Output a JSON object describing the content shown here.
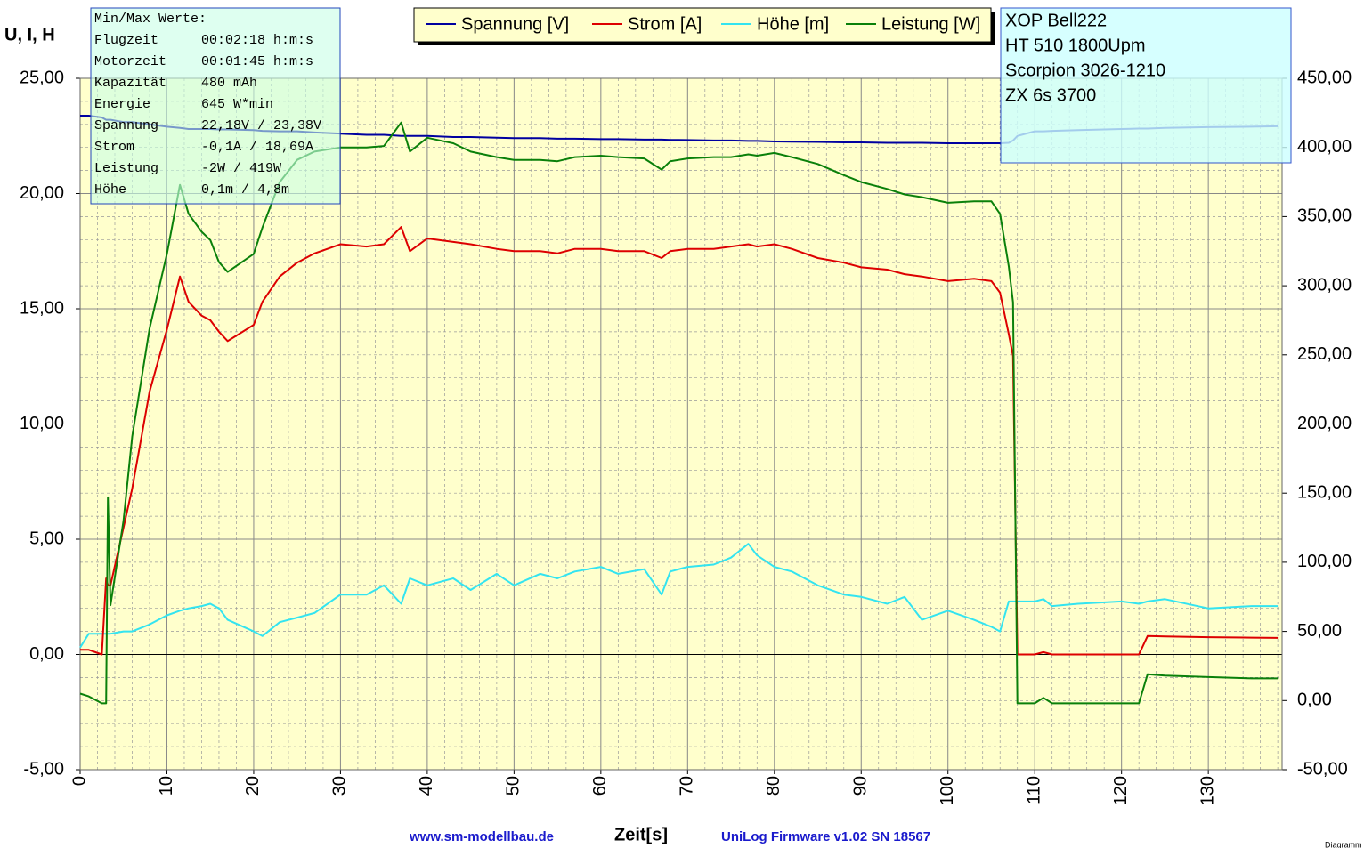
{
  "chart_data": {
    "type": "line",
    "ylabel": "U, I, H",
    "xlabel": "Zeit[s]",
    "footer_left": "www.sm-modellbau.de",
    "footer_right": "UniLog Firmware v1.02 SN 18567",
    "corner_label": "Diagramm",
    "info_box": {
      "title": "Min/Max Werte:",
      "rows": [
        [
          "Flugzeit",
          "00:02:18 h:m:s"
        ],
        [
          "Motorzeit",
          "00:01:45 h:m:s"
        ],
        [
          "Kapazität",
          "480 mAh"
        ],
        [
          "Energie",
          "645 W*min"
        ],
        [
          "Spannung",
          "22,18V / 23,38V"
        ],
        [
          "Strom",
          "-0,1A / 18,69A"
        ],
        [
          "Leistung",
          "-2W / 419W"
        ],
        [
          "Höhe",
          "0,1m / 4,8m"
        ]
      ]
    },
    "notes_box": [
      "XOP Bell222",
      "HT 510 1800Upm",
      "Scorpion 3026-1210",
      "ZX 6s 3700"
    ],
    "grid": true,
    "minor_grid": true,
    "background": "#ffffcc",
    "xlim": [
      0,
      138.5
    ],
    "xticks": [
      0,
      10,
      20,
      30,
      40,
      50,
      60,
      70,
      80,
      90,
      100,
      110,
      120,
      130
    ],
    "ylim": [
      -5,
      25
    ],
    "yticks": [
      {
        "value": -5,
        "label": "-5,00"
      },
      {
        "value": 0,
        "label": "0,00"
      },
      {
        "value": 5,
        "label": "5,00"
      },
      {
        "value": 10,
        "label": "10,00"
      },
      {
        "value": 15,
        "label": "15,00"
      },
      {
        "value": 20,
        "label": "20,00"
      },
      {
        "value": 25,
        "label": "25,00"
      }
    ],
    "y2lim": [
      -50,
      450
    ],
    "y2ticks": [
      {
        "value": -50,
        "label": "-50,00"
      },
      {
        "value": 0,
        "label": "0,00"
      },
      {
        "value": 50,
        "label": "50,00"
      },
      {
        "value": 100,
        "label": "100,00"
      },
      {
        "value": 150,
        "label": "150,00"
      },
      {
        "value": 200,
        "label": "200,00"
      },
      {
        "value": 250,
        "label": "250,00"
      },
      {
        "value": 300,
        "label": "300,00"
      },
      {
        "value": 350,
        "label": "350,00"
      },
      {
        "value": 400,
        "label": "400,00"
      },
      {
        "value": 450,
        "label": "450,00"
      }
    ],
    "x": [
      0,
      1,
      2.5,
      3,
      3.2,
      3.5,
      5,
      6,
      8,
      10,
      11.5,
      12.5,
      14,
      15,
      16,
      17,
      20,
      21,
      23,
      25,
      27,
      30,
      33,
      35,
      37,
      38,
      40,
      43,
      45,
      48,
      50,
      53,
      55,
      57,
      60,
      62,
      65,
      67,
      68,
      70,
      73,
      75,
      77,
      78,
      80,
      82,
      85,
      88,
      90,
      93,
      95,
      97,
      100,
      103,
      105,
      106,
      107,
      107.5,
      108,
      110,
      111,
      112,
      115,
      120,
      122,
      123,
      125,
      130,
      135,
      138
    ],
    "series": [
      {
        "name": "Spannung [V]",
        "color": "#0000a0",
        "values": [
          23.38,
          23.38,
          23.3,
          23.2,
          23.2,
          23.2,
          23.1,
          23.1,
          23.0,
          22.9,
          22.85,
          22.8,
          22.8,
          22.8,
          22.78,
          22.78,
          22.75,
          22.72,
          22.7,
          22.7,
          22.65,
          22.6,
          22.55,
          22.55,
          22.5,
          22.5,
          22.5,
          22.45,
          22.45,
          22.42,
          22.4,
          22.4,
          22.38,
          22.38,
          22.36,
          22.36,
          22.34,
          22.34,
          22.33,
          22.32,
          22.3,
          22.3,
          22.28,
          22.28,
          22.26,
          22.25,
          22.24,
          22.22,
          22.22,
          22.2,
          22.2,
          22.2,
          22.18,
          22.18,
          22.18,
          22.18,
          22.2,
          22.3,
          22.5,
          22.7,
          22.7,
          22.72,
          22.75,
          22.8,
          22.82,
          22.82,
          22.85,
          22.88,
          22.9,
          22.92
        ]
      },
      {
        "name": "Strom [A]",
        "color": "#dd0000",
        "values": [
          0.2,
          0.2,
          0,
          3.3,
          3.0,
          3.0,
          5.5,
          7.2,
          11.4,
          14.1,
          16.4,
          15.3,
          14.7,
          14.5,
          14.0,
          13.6,
          14.3,
          15.3,
          16.4,
          17.0,
          17.4,
          17.8,
          17.7,
          17.8,
          18.55,
          17.5,
          18.05,
          17.9,
          17.8,
          17.6,
          17.5,
          17.5,
          17.4,
          17.6,
          17.6,
          17.5,
          17.5,
          17.2,
          17.5,
          17.6,
          17.6,
          17.7,
          17.8,
          17.7,
          17.8,
          17.6,
          17.2,
          17.0,
          16.8,
          16.7,
          16.5,
          16.4,
          16.2,
          16.3,
          16.2,
          15.7,
          13.9,
          12.95,
          0,
          0,
          0.1,
          0,
          0,
          0,
          0,
          0.8,
          0.78,
          0.75,
          0.73,
          0.72
        ]
      },
      {
        "name": "Höhe [m]",
        "color": "#33e4f0",
        "values": [
          0.3,
          0.9,
          0.9,
          0.9,
          0.9,
          0.9,
          1.0,
          1.0,
          1.3,
          1.7,
          1.9,
          2.0,
          2.1,
          2.2,
          2.0,
          1.5,
          1.0,
          0.8,
          1.4,
          1.6,
          1.8,
          2.6,
          2.6,
          3.0,
          2.2,
          3.3,
          3.0,
          3.3,
          2.8,
          3.5,
          3.0,
          3.5,
          3.3,
          3.6,
          3.8,
          3.5,
          3.7,
          2.6,
          3.6,
          3.8,
          3.9,
          4.2,
          4.8,
          4.3,
          3.8,
          3.6,
          3.0,
          2.6,
          2.5,
          2.2,
          2.5,
          1.5,
          1.9,
          1.5,
          1.2,
          1.0,
          2.3,
          2.3,
          2.3,
          2.3,
          2.4,
          2.1,
          2.2,
          2.3,
          2.2,
          2.3,
          2.4,
          2.0,
          2.1,
          2.1
        ]
      },
      {
        "name": "Leistung [W]",
        "color": "#0a800a",
        "axis": "y2",
        "values": [
          5,
          3,
          -2,
          -2,
          147,
          69,
          130,
          191,
          269,
          323,
          373,
          352,
          339,
          333,
          317,
          310,
          323,
          342,
          375,
          391,
          397,
          400,
          400,
          401,
          418,
          397,
          407,
          403,
          397,
          393,
          391,
          391,
          390,
          393,
          394,
          393,
          392,
          384,
          390,
          392,
          393,
          393,
          395,
          394,
          396,
          393,
          388,
          380,
          375,
          370,
          366,
          364,
          360,
          361,
          361,
          352,
          314,
          288,
          -2,
          -2,
          2,
          -2,
          -2,
          -2,
          -2,
          19,
          18,
          17,
          16,
          16
        ]
      }
    ]
  }
}
